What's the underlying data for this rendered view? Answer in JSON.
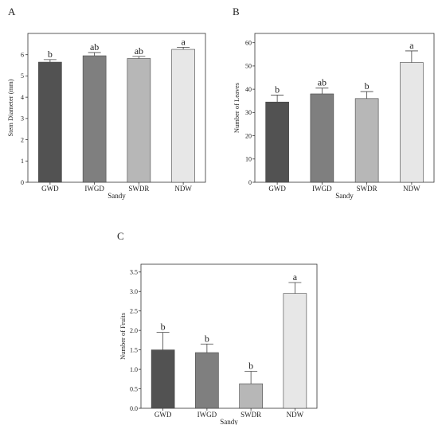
{
  "colors": {
    "GWD": "#525252",
    "IWGD": "#7f7f7f",
    "SWDR": "#b7b7b7",
    "NDW": "#e7e7e7",
    "axis": "#333333"
  },
  "chart_data": [
    {
      "panel": "A",
      "type": "bar",
      "categories": [
        "GWD",
        "IWGD",
        "SWDR",
        "NDW"
      ],
      "values": [
        5.65,
        5.95,
        5.82,
        6.25
      ],
      "errors": [
        0.12,
        0.15,
        0.1,
        0.1
      ],
      "sig_labels": [
        "b",
        "ab",
        "ab",
        "a"
      ],
      "xlabel": "Sandy",
      "ylabel": "Stem Diameter (mm)",
      "ylim": [
        0,
        7
      ],
      "yticks": [
        0,
        1,
        2,
        3,
        4,
        5,
        6
      ],
      "ytick_labels": [
        "0",
        "1",
        "2",
        "3",
        "4",
        "5",
        "6"
      ]
    },
    {
      "panel": "B",
      "type": "bar",
      "categories": [
        "GWD",
        "IWGD",
        "SWDR",
        "NDW"
      ],
      "values": [
        34.5,
        38.0,
        36.0,
        51.5
      ],
      "errors": [
        3.0,
        2.5,
        3.0,
        5.0
      ],
      "sig_labels": [
        "b",
        "ab",
        "b",
        "a"
      ],
      "xlabel": "Sandy",
      "ylabel": "Number of Leaves",
      "ylim": [
        0,
        64
      ],
      "yticks": [
        0,
        10,
        20,
        30,
        40,
        50,
        60
      ],
      "ytick_labels": [
        "0",
        "10",
        "20",
        "30",
        "40",
        "50",
        "60"
      ]
    },
    {
      "panel": "C",
      "type": "bar",
      "categories": [
        "GWD",
        "IWGD",
        "SWDR",
        "NDW"
      ],
      "values": [
        1.5,
        1.43,
        0.63,
        2.95
      ],
      "errors": [
        0.45,
        0.22,
        0.32,
        0.28
      ],
      "sig_labels": [
        "b",
        "b",
        "b",
        "a"
      ],
      "xlabel": "Sandy",
      "ylabel": "Number of Fruits",
      "ylim": [
        0,
        3.7
      ],
      "yticks": [
        0,
        0.5,
        1.0,
        1.5,
        2.0,
        2.5,
        3.0,
        3.5
      ],
      "ytick_labels": [
        "0.0",
        "0.5",
        "1.0",
        "1.5",
        "2.0",
        "2.5",
        "3.0",
        "3.5"
      ]
    }
  ]
}
